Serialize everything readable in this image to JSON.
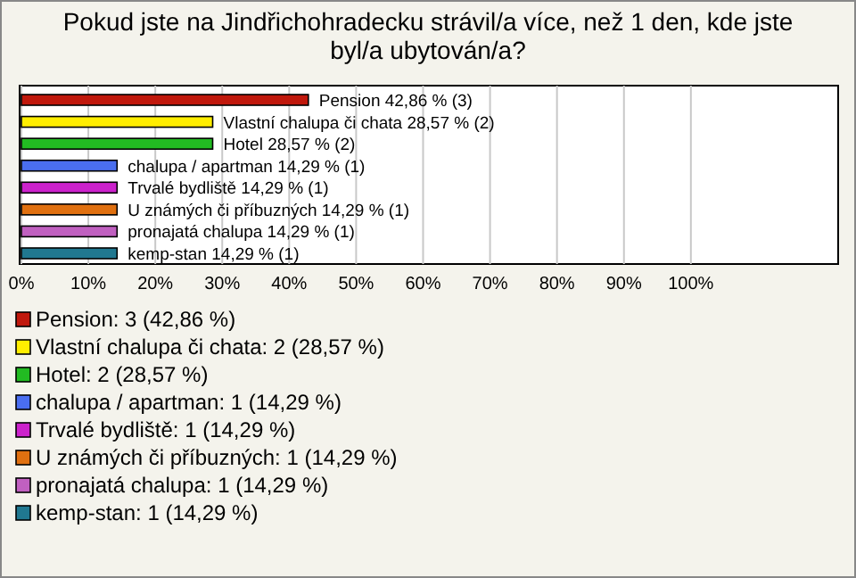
{
  "chart_data": {
    "type": "bar",
    "orientation": "horizontal",
    "title": "Pokud jste na Jindřichohradecku strávil/a více, než 1 den, kde jste byl/a ubytován/a?",
    "categories": [
      "Pension",
      "Vlastní chalupa či chata",
      "Hotel",
      "chalupa / apartman",
      "Trvalé bydliště",
      "U známých či příbuzných",
      "pronajatá chalupa",
      "kemp-stan"
    ],
    "values": [
      42.86,
      28.57,
      28.57,
      14.29,
      14.29,
      14.29,
      14.29,
      14.29
    ],
    "value_labels": [
      "42,86 % (3)",
      "28,57 % (2)",
      "28,57 % (2)",
      "14,29 % (1)",
      "14,29 % (1)",
      "14,29 % (1)",
      "14,29 % (1)",
      "14,29 % (1)"
    ],
    "colors": [
      "#c0180c",
      "#ffee00",
      "#22bb22",
      "#4a6ef0",
      "#cc22cc",
      "#e07010",
      "#c060c0",
      "#207890"
    ],
    "xlim": [
      0,
      122
    ],
    "xticks": [
      {
        "value": 0,
        "label": "0%"
      },
      {
        "value": 10,
        "label": "10%"
      },
      {
        "value": 20,
        "label": "20%"
      },
      {
        "value": 30,
        "label": "30%"
      },
      {
        "value": 40,
        "label": "40%"
      },
      {
        "value": 50,
        "label": "50%"
      },
      {
        "value": 60,
        "label": "60%"
      },
      {
        "value": 70,
        "label": "70%"
      },
      {
        "value": 80,
        "label": "80%"
      },
      {
        "value": 90,
        "label": "90%"
      },
      {
        "value": 100,
        "label": "100%"
      }
    ],
    "grid": "x",
    "annotations": [
      "Pension: 3 (42,86 %)",
      "Vlastní chalupa či chata: 2 (28,57 %)",
      "Hotel: 2 (28,57 %)",
      "chalupa / apartman: 1 (14,29 %)",
      "Trvalé bydliště: 1 (14,29 %)",
      "U známých či příbuzných: 1 (14,29 %)",
      "pronajatá chalupa: 1 (14,29 %)",
      "kemp-stan: 1 (14,29 %)"
    ]
  }
}
